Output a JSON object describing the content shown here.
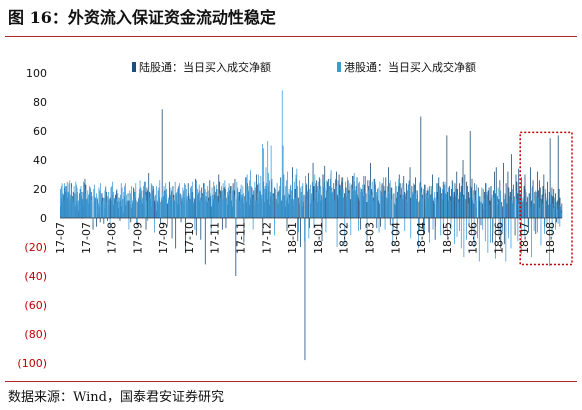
{
  "figure": {
    "title": "图 16：外资流入保证资金流动性稳定",
    "source": "数据来源：Wind，国泰君安证券研究"
  },
  "colors": {
    "series1": "#1f4e79",
    "series2": "#3d9ad6",
    "negative_tick": "#c00000",
    "highlight_box": "#c00000",
    "rule": "#b0272d"
  },
  "chart_data": {
    "type": "bar",
    "ylim": [
      -100,
      100
    ],
    "yticks": [
      100,
      80,
      60,
      40,
      20,
      0,
      -20,
      -40,
      -60,
      -80,
      -100
    ],
    "ytick_labels": [
      "100",
      "80",
      "60",
      "40",
      "20",
      "0",
      "(20)",
      "(40)",
      "(60)",
      "(80)",
      "(100)"
    ],
    "xtick_labels": [
      "17-07",
      "17-07",
      "17-08",
      "17-09",
      "17-09",
      "17-10",
      "17-11",
      "17-11",
      "17-12",
      "18-01",
      "18-01",
      "18-02",
      "18-03",
      "18-04",
      "18-04",
      "18-05",
      "18-06",
      "18-06",
      "18-07",
      "18-08"
    ],
    "legend_position": "top",
    "highlight_box": {
      "x_start": "18-07",
      "x_end": "18-08",
      "y_range": [
        -30,
        57
      ]
    },
    "series": [
      {
        "name": "陆股通：当日买入成交净额",
        "values": [
          8,
          14,
          11,
          16,
          21,
          18,
          22,
          19,
          14,
          17,
          10,
          13,
          24,
          15,
          18,
          11,
          8,
          12,
          21,
          9,
          5,
          17,
          20,
          15,
          13,
          18,
          9,
          27,
          23,
          12,
          14,
          10,
          17,
          20,
          18,
          11,
          -8,
          15,
          12,
          14,
          -6,
          13,
          3,
          8,
          -3,
          12,
          17,
          14,
          -4,
          7,
          21,
          18,
          -2,
          12,
          9,
          14,
          12,
          16,
          10,
          9,
          13,
          16,
          19,
          11,
          7,
          14,
          -2,
          12,
          8,
          3,
          4,
          15,
          9,
          11,
          8,
          17,
          12,
          9,
          -3,
          7,
          10,
          21,
          18,
          14,
          12,
          -5,
          11,
          14,
          20,
          17,
          12,
          10,
          19,
          8,
          25,
          -8,
          21,
          19,
          31,
          18,
          13,
          8,
          19,
          22,
          15,
          12,
          10,
          5,
          11,
          9,
          14,
          -4,
          12,
          75,
          12,
          18,
          19,
          13,
          16,
          10,
          12,
          25,
          15,
          18,
          -14,
          22,
          16,
          12,
          -21,
          15,
          10,
          21,
          9,
          17,
          -3,
          12,
          16,
          10,
          14,
          -24,
          13,
          11,
          24,
          15,
          13,
          12,
          22,
          18,
          10,
          13,
          27,
          -12,
          14,
          16,
          18,
          12,
          -15,
          21,
          17,
          24,
          18,
          -32,
          12,
          11,
          19,
          14,
          26,
          15,
          8,
          10,
          13,
          22,
          16,
          18,
          20,
          15,
          30,
          25,
          19,
          18,
          -8,
          13,
          21,
          22,
          -7,
          14,
          9,
          16,
          19,
          22,
          12,
          8,
          24,
          19,
          27,
          -40,
          13,
          20,
          15,
          18,
          16,
          12,
          14,
          10,
          -17,
          15,
          28,
          11,
          24,
          18,
          9,
          14,
          12,
          21,
          16,
          19,
          8,
          12,
          30,
          23,
          14,
          10,
          18,
          13,
          16,
          -12,
          25,
          11,
          17,
          20,
          13,
          22,
          18,
          9,
          15,
          25,
          12,
          17,
          21,
          14,
          11,
          16,
          10,
          19,
          13,
          28,
          12,
          15,
          20,
          16,
          8,
          12,
          -9,
          14,
          10,
          16,
          22,
          13,
          35,
          8,
          12,
          20,
          27,
          15,
          -16,
          14,
          10,
          -20,
          12,
          8,
          11,
          16,
          -98,
          15,
          23,
          18,
          31,
          -7,
          10,
          16,
          13,
          38,
          22,
          14,
          19,
          26,
          11,
          17,
          28,
          12,
          15,
          -16,
          30,
          21,
          36,
          14,
          19,
          25,
          27,
          22,
          18,
          31,
          17,
          12,
          24,
          20,
          26,
          32,
          16,
          14,
          30,
          23,
          19,
          25,
          28,
          14,
          17,
          21,
          15,
          11,
          26,
          19,
          22,
          13,
          23,
          29,
          19,
          25,
          16,
          22,
          28,
          14,
          24,
          12,
          -8,
          20,
          18,
          15,
          23,
          29,
          17,
          11,
          26,
          22,
          16,
          38,
          20,
          18,
          14,
          27,
          25,
          16,
          -7,
          20,
          12,
          10,
          -6,
          18,
          24,
          15,
          22,
          19,
          28,
          11,
          14,
          35,
          17,
          -5,
          21,
          16,
          -8,
          17,
          10,
          9,
          14,
          18,
          22,
          30,
          24,
          16,
          20,
          13,
          29,
          18,
          15,
          24,
          11,
          19,
          25,
          35,
          14,
          22,
          16,
          17,
          23,
          28,
          13,
          19,
          11,
          -9,
          24,
          70,
          21,
          16,
          -12,
          23,
          13,
          8,
          19,
          14,
          -10,
          22,
          16,
          17,
          30,
          12,
          10,
          -15,
          14,
          18,
          24,
          28,
          15,
          21,
          17,
          13,
          25,
          19,
          23,
          16,
          57,
          18,
          12,
          22,
          15,
          20,
          26,
          14,
          18,
          24,
          15,
          32,
          20,
          13,
          24,
          17,
          22,
          28,
          40,
          16,
          30,
          13,
          25,
          22,
          18,
          14,
          60,
          21,
          27,
          12,
          10,
          24,
          19,
          7,
          -4,
          21,
          15,
          12,
          -5,
          20,
          10,
          6,
          18,
          24,
          15,
          16,
          19,
          21,
          12,
          22,
          14,
          -17,
          19,
          32,
          17,
          35,
          15,
          9,
          13,
          26,
          -21,
          11,
          8,
          38,
          -18,
          16,
          24,
          10,
          32,
          21,
          15,
          18,
          44,
          10,
          23,
          15,
          -12,
          30,
          25,
          17,
          34,
          19,
          16,
          28,
          10,
          12,
          22,
          30,
          18,
          11,
          14,
          -10,
          17,
          35,
          12,
          21,
          26,
          10,
          18,
          -11,
          15,
          32,
          19,
          26,
          21,
          13,
          16,
          22,
          30,
          -6,
          17,
          12,
          25,
          9,
          18,
          55,
          10,
          21,
          15,
          20,
          8,
          17,
          -3,
          12,
          57,
          20,
          14,
          5,
          10
        ],
        "color": "#1f4e79"
      },
      {
        "name": "港股通：当日买入成交净额",
        "values": [
          20,
          22,
          24,
          17,
          12,
          24,
          22,
          19,
          25,
          18,
          24,
          26,
          16,
          21,
          14,
          11,
          22,
          17,
          25,
          23,
          18,
          12,
          15,
          20,
          22,
          18,
          13,
          25,
          24,
          20,
          17,
          13,
          19,
          16,
          22,
          21,
          12,
          15,
          -3,
          20,
          23,
          13,
          17,
          14,
          10,
          21,
          19,
          24,
          17,
          12,
          9,
          14,
          19,
          22,
          11,
          15,
          18,
          13,
          -6,
          21,
          22,
          25,
          18,
          14,
          10,
          13,
          20,
          17,
          12,
          11,
          16,
          24,
          21,
          13,
          18,
          22,
          24,
          16,
          12,
          15,
          -8,
          19,
          17,
          22,
          12,
          14,
          20,
          18,
          24,
          -4,
          11,
          13,
          17,
          26,
          21,
          19,
          14,
          22,
          25,
          16,
          18,
          12,
          -2,
          19,
          14,
          17,
          24,
          23,
          15,
          20,
          -10,
          16,
          22,
          12,
          19,
          21,
          26,
          11,
          14,
          17,
          15,
          22,
          18,
          24,
          20,
          -6,
          14,
          13,
          16,
          21,
          19,
          11,
          14,
          12,
          25,
          17,
          18,
          20,
          22,
          24,
          9,
          16,
          14,
          21,
          19,
          24,
          23,
          20,
          15,
          12,
          17,
          13,
          21,
          18,
          25,
          11,
          14,
          -8,
          22,
          26,
          20,
          17,
          23,
          19,
          14,
          12,
          16,
          21,
          24,
          20,
          15,
          18,
          22,
          12,
          19,
          17,
          -11,
          21,
          16,
          25,
          13,
          18,
          23,
          20,
          15,
          11,
          17,
          14,
          22,
          19,
          24,
          16,
          26,
          20,
          13,
          18,
          21,
          24,
          17,
          12,
          22,
          19,
          23,
          16,
          14,
          -5,
          25,
          21,
          18,
          12,
          20,
          23,
          16,
          22,
          17,
          13,
          24,
          28,
          30,
          19,
          22,
          26,
          33,
          22,
          18,
          -8,
          14,
          25,
          21,
          12,
          17,
          30,
          24,
          19,
          29,
          16,
          51,
          48,
          20,
          22,
          35,
          24,
          53,
          31,
          26,
          18,
          50,
          27,
          17,
          15,
          -12,
          20,
          13,
          24,
          18,
          15,
          22,
          26,
          12,
          88,
          50,
          30,
          15,
          22,
          26,
          32,
          17,
          20,
          14,
          23,
          19,
          28,
          13,
          25,
          14,
          30,
          34,
          22,
          -10,
          26,
          21,
          18,
          22,
          24,
          15,
          -16,
          29,
          24,
          13,
          19,
          -14,
          20,
          23,
          17,
          25,
          12,
          -7,
          30,
          24,
          18,
          22,
          25,
          20,
          27,
          22,
          16,
          13,
          30,
          25,
          21,
          -10,
          26,
          18,
          24,
          19,
          27,
          33,
          21,
          18,
          24,
          12,
          27,
          22,
          -20,
          26,
          23,
          16,
          22,
          28,
          19,
          20,
          14,
          -18,
          25,
          21,
          28,
          17,
          18,
          24,
          -12,
          23,
          20,
          29,
          31,
          19,
          22,
          27,
          16,
          -9,
          25,
          21,
          18,
          20,
          23,
          29,
          17,
          24,
          14,
          -17,
          21,
          19,
          26,
          22,
          16,
          25,
          12,
          20,
          27,
          23,
          18,
          15,
          21,
          -10,
          25,
          19,
          23,
          16,
          28,
          20,
          -8,
          17,
          14,
          22,
          18,
          24,
          26,
          13,
          21,
          -19,
          16,
          10,
          25,
          22,
          -12,
          18,
          27,
          19,
          14,
          21,
          24,
          16,
          20,
          -9,
          17,
          13,
          19,
          23,
          26,
          22,
          -14,
          15,
          18,
          24,
          21,
          17,
          13,
          19,
          16,
          -21,
          12,
          25,
          22,
          18,
          14,
          20,
          -11,
          23,
          17,
          16,
          21,
          19,
          -17,
          15,
          22,
          20,
          -8,
          14,
          18,
          -6,
          24,
          13,
          10,
          19,
          22,
          -12,
          16,
          20,
          -9,
          23,
          25,
          17,
          18,
          -15,
          21,
          14,
          12,
          -8,
          19,
          25,
          16,
          -18,
          22,
          20,
          -13,
          16,
          11,
          -9,
          18,
          -21,
          15,
          24,
          -27,
          19,
          13,
          -15,
          20,
          10,
          -6,
          17,
          22,
          -11,
          14,
          19,
          -20,
          16,
          12,
          23,
          -14,
          18,
          -30,
          15,
          11,
          21,
          -8,
          20,
          13,
          -16,
          24,
          18,
          -24,
          12,
          9,
          -17,
          22,
          16,
          -10,
          14,
          20,
          -28,
          18,
          11,
          21,
          -12,
          15,
          19,
          8,
          -9,
          24,
          13,
          17,
          -30,
          10,
          22,
          -14,
          18,
          15,
          -21,
          12,
          20,
          16,
          8,
          -8,
          19,
          13,
          -16,
          10,
          22,
          17,
          -25,
          11,
          14,
          18,
          -12,
          20,
          9,
          15,
          -6,
          17,
          13,
          8,
          -27,
          22,
          11,
          -9,
          12,
          19,
          18,
          -10,
          14,
          7,
          12,
          -19,
          16,
          10,
          15,
          -11,
          20,
          14,
          -5,
          13,
          8,
          -33,
          18,
          16,
          -12,
          10,
          7,
          14,
          -8,
          11,
          6,
          -4,
          9,
          -6,
          8,
          4
        ],
        "color": "#3d9ad6"
      }
    ]
  }
}
